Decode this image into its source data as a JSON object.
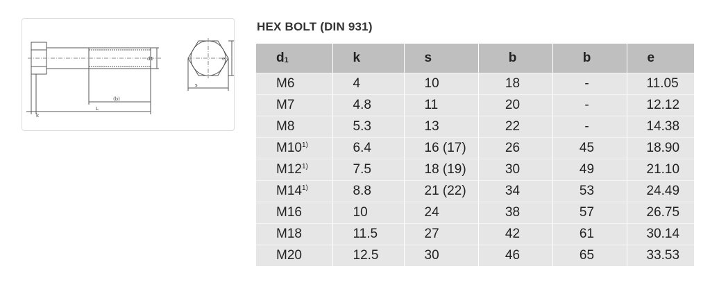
{
  "drawing": {
    "labels": {
      "d1_side": "d1",
      "e": "e",
      "b": "(b)",
      "L": "L",
      "k": "k",
      "s": "s"
    }
  },
  "title": "HEX BOLT (DIN 931)",
  "table": {
    "headers": [
      {
        "base": "d",
        "sub": "1"
      },
      {
        "base": "k"
      },
      {
        "base": "s"
      },
      {
        "base": "b"
      },
      {
        "base": "b"
      },
      {
        "base": "e"
      }
    ],
    "rows": [
      {
        "d1": "M6",
        "sup": "",
        "k": "4",
        "s": "10",
        "b1": "18",
        "b2": "-",
        "e": "11.05"
      },
      {
        "d1": "M7",
        "sup": "",
        "k": "4.8",
        "s": "11",
        "b1": "20",
        "b2": "-",
        "e": "12.12"
      },
      {
        "d1": "M8",
        "sup": "",
        "k": "5.3",
        "s": "13",
        "b1": "22",
        "b2": "-",
        "e": "14.38"
      },
      {
        "d1": "M10",
        "sup": "1)",
        "k": "6.4",
        "s": "16 (17)",
        "b1": "26",
        "b2": "45",
        "e": "18.90"
      },
      {
        "d1": "M12",
        "sup": "1)",
        "k": "7.5",
        "s": "18 (19)",
        "b1": "30",
        "b2": "49",
        "e": "21.10"
      },
      {
        "d1": "M14",
        "sup": "1)",
        "k": "8.8",
        "s": "21 (22)",
        "b1": "34",
        "b2": "53",
        "e": "24.49"
      },
      {
        "d1": "M16",
        "sup": "",
        "k": "10",
        "s": "24",
        "b1": "38",
        "b2": "57",
        "e": "26.75"
      },
      {
        "d1": "M18",
        "sup": "",
        "k": "11.5",
        "s": "27",
        "b1": "42",
        "b2": "61",
        "e": "30.14"
      },
      {
        "d1": "M20",
        "sup": "",
        "k": "12.5",
        "s": "30",
        "b1": "46",
        "b2": "65",
        "e": "33.53"
      }
    ]
  }
}
